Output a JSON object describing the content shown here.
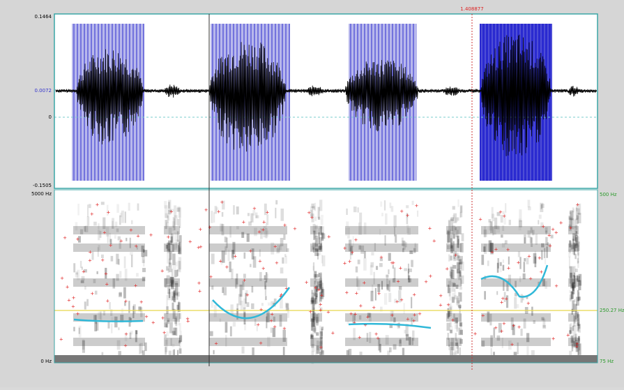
{
  "waveform": {
    "top_label": "0.1464",
    "marker_label": "0.0072",
    "zero_label": "0",
    "bottom_label": "-0.1505"
  },
  "cursor": {
    "time_label": "1.408877"
  },
  "spectrogram": {
    "top_label": "5000 Hz",
    "bottom_label": "0 Hz",
    "pitch_top_label": "500 Hz",
    "pitch_mid_label": "250.27 Hz",
    "pitch_bottom_label": "75 Hz"
  }
}
